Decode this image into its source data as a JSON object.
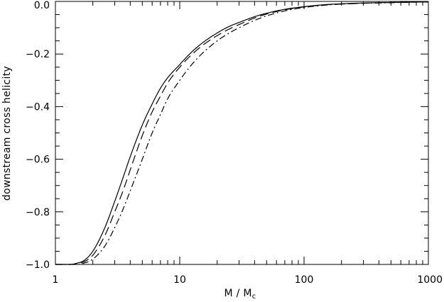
{
  "chart_data": {
    "type": "line",
    "title": "",
    "xlabel": "M / M",
    "xlabel_sub": "c",
    "ylabel": "downstream cross helicity",
    "xscale": "log",
    "xlim": [
      1,
      1000
    ],
    "ylim": [
      -1.0,
      0.0
    ],
    "x_ticks": [
      1,
      10,
      100,
      1000
    ],
    "x_tick_labels": [
      "1",
      "10",
      "100",
      "1000"
    ],
    "y_ticks": [
      -1.0,
      -0.8,
      -0.6,
      -0.4,
      -0.2,
      0.0
    ],
    "y_tick_labels": [
      "−1.0",
      "−0.8",
      "−0.6",
      "−0.4",
      "−0.2",
      "0.0"
    ],
    "grid": false,
    "series": [
      {
        "line_style": "solid",
        "x": [
          1,
          1.3,
          1.5,
          1.7,
          2,
          2.5,
          3,
          3.5,
          4,
          5,
          6,
          7,
          8,
          10,
          12,
          15,
          20,
          25,
          30,
          40,
          50,
          70,
          100,
          150,
          200,
          300,
          500,
          700,
          1000
        ],
        "y": [
          -1.0,
          -1.0,
          -0.995,
          -0.985,
          -0.95,
          -0.86,
          -0.76,
          -0.67,
          -0.59,
          -0.47,
          -0.39,
          -0.33,
          -0.29,
          -0.24,
          -0.2,
          -0.16,
          -0.12,
          -0.095,
          -0.08,
          -0.058,
          -0.045,
          -0.03,
          -0.02,
          -0.012,
          -0.009,
          -0.006,
          -0.004,
          -0.003,
          -0.002
        ]
      },
      {
        "line_style": "dashed",
        "x": [
          1,
          1.3,
          1.5,
          1.7,
          2,
          2.5,
          3,
          3.5,
          4,
          5,
          6,
          7,
          8,
          10,
          12,
          15,
          20,
          25,
          30,
          40,
          50,
          70,
          100,
          150,
          200,
          300,
          500,
          700,
          1000
        ],
        "y": [
          -1.0,
          -1.0,
          -0.997,
          -0.99,
          -0.965,
          -0.89,
          -0.8,
          -0.72,
          -0.64,
          -0.51,
          -0.42,
          -0.36,
          -0.31,
          -0.25,
          -0.21,
          -0.17,
          -0.13,
          -0.105,
          -0.088,
          -0.063,
          -0.048,
          -0.032,
          -0.021,
          -0.013,
          -0.01,
          -0.007,
          -0.004,
          -0.003,
          -0.002
        ]
      },
      {
        "line_style": "dash-dot",
        "x": [
          1,
          1.3,
          1.5,
          1.7,
          2,
          2.5,
          3,
          3.5,
          4,
          5,
          6,
          7,
          8,
          10,
          12,
          15,
          20,
          25,
          30,
          40,
          50,
          70,
          100,
          150,
          200,
          300,
          500,
          700,
          1000
        ],
        "y": [
          -1.0,
          -1.0,
          -1.0,
          -0.995,
          -0.98,
          -0.93,
          -0.86,
          -0.79,
          -0.72,
          -0.6,
          -0.5,
          -0.43,
          -0.37,
          -0.3,
          -0.25,
          -0.2,
          -0.15,
          -0.12,
          -0.1,
          -0.072,
          -0.055,
          -0.036,
          -0.023,
          -0.014,
          -0.01,
          -0.007,
          -0.005,
          -0.003,
          -0.002
        ]
      }
    ]
  }
}
